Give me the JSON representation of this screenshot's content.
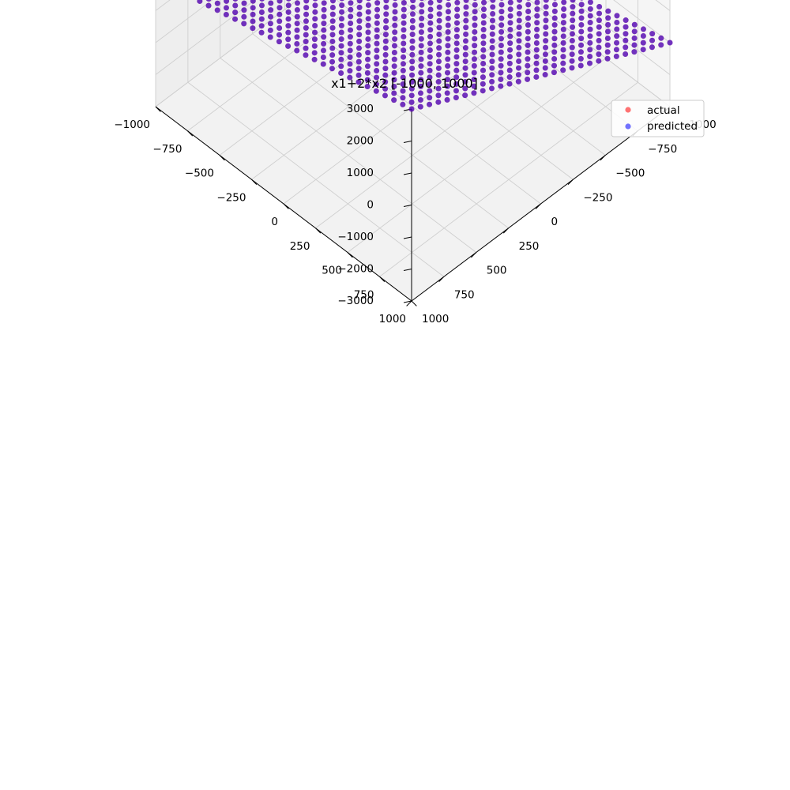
{
  "chart_data": {
    "type": "scatter",
    "projection": "3d",
    "title": "x1+2*x2 [-1000, 1000]",
    "xlabel": "",
    "ylabel": "",
    "zlabel": "",
    "xlim": [
      -1000,
      1000
    ],
    "ylim": [
      -1000,
      1000
    ],
    "zlim": [
      -3000,
      3000
    ],
    "x_ticks": [
      "−1000",
      "−750",
      "−500",
      "−250",
      "0",
      "250",
      "500",
      "750",
      "1000"
    ],
    "y_ticks": [
      "−1000",
      "−750",
      "−500",
      "−250",
      "0",
      "250",
      "500",
      "750",
      "1000"
    ],
    "z_ticks": [
      "−3000",
      "−2000",
      "−1000",
      "0",
      "1000",
      "2000",
      "3000"
    ],
    "grid": true,
    "legend_position": "top-right",
    "series": [
      {
        "name": "actual",
        "color": "#ff0000",
        "alpha": 0.55,
        "formula": "z = x1 + 2*x2",
        "x1_range": [
          -1000,
          1000
        ],
        "x2_range": [
          -1000,
          1000
        ],
        "grid_points_per_axis": 30
      },
      {
        "name": "predicted",
        "color": "#0000ff",
        "alpha": 0.55,
        "formula": "z = x1 + 2*x2",
        "x1_range": [
          -1000,
          1000
        ],
        "x2_range": [
          -1000,
          1000
        ],
        "grid_points_per_axis": 30
      }
    ]
  }
}
